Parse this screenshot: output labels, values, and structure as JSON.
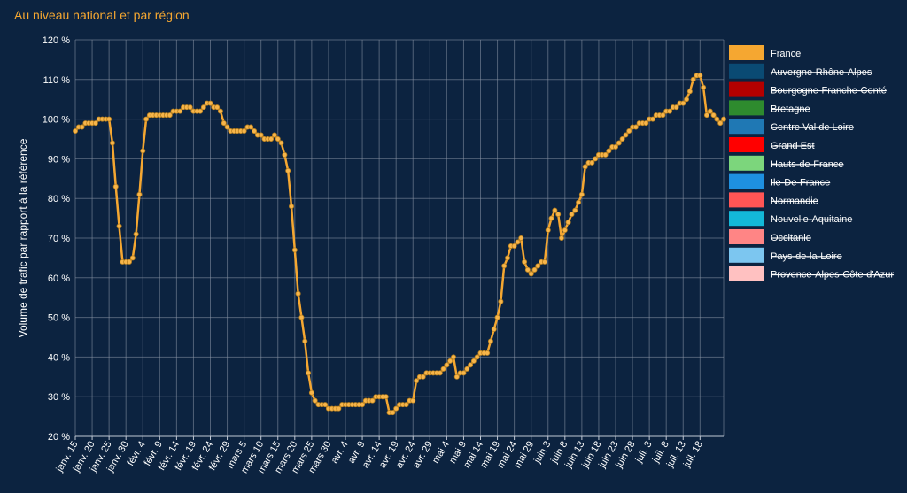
{
  "page_title": "Au niveau national et par région",
  "chart_data": {
    "type": "line",
    "ylabel": "Volume de trafic par rapport à la référence",
    "ylim": [
      20,
      120
    ],
    "y_ticks": [
      20,
      30,
      40,
      50,
      60,
      70,
      80,
      90,
      100,
      110,
      120
    ],
    "y_tick_suffix": " %",
    "grid": true,
    "legend_position": "right",
    "x_start": "2020-01-15",
    "x_end": "2020-07-19",
    "x_ticks": [
      "janv. 15",
      "janv. 20",
      "janv. 25",
      "janv. 30",
      "févr. 4",
      "févr. 9",
      "févr. 14",
      "févr. 19",
      "févr. 24",
      "févr. 29",
      "mars 5",
      "mars 10",
      "mars 15",
      "mars 20",
      "mars 25",
      "mars 30",
      "avr. 4",
      "avr. 9",
      "avr. 14",
      "avr. 19",
      "avr. 24",
      "avr. 29",
      "mai 4",
      "mai 9",
      "mai 14",
      "mai 19",
      "mai 24",
      "mai 29",
      "juin 3",
      "juin 8",
      "juin 13",
      "juin 18",
      "juin 23",
      "juin 28",
      "juil. 3",
      "juil. 8",
      "juil. 13",
      "juil. 18"
    ],
    "series": [
      {
        "name": "France",
        "color": "#f5a731",
        "visible": true,
        "values": [
          97,
          98,
          98,
          99,
          99,
          99,
          99,
          100,
          100,
          100,
          100,
          94,
          83,
          73,
          64,
          64,
          64,
          65,
          71,
          81,
          92,
          100,
          101,
          101,
          101,
          101,
          101,
          101,
          101,
          102,
          102,
          102,
          103,
          103,
          103,
          102,
          102,
          102,
          103,
          104,
          104,
          103,
          103,
          102,
          99,
          98,
          97,
          97,
          97,
          97,
          97,
          98,
          98,
          97,
          96,
          96,
          95,
          95,
          95,
          96,
          95,
          94,
          91,
          87,
          78,
          67,
          56,
          50,
          44,
          36,
          31,
          29,
          28,
          28,
          28,
          27,
          27,
          27,
          27,
          28,
          28,
          28,
          28,
          28,
          28,
          28,
          29,
          29,
          29,
          30,
          30,
          30,
          30,
          26,
          26,
          27,
          28,
          28,
          28,
          29,
          29,
          34,
          35,
          35,
          36,
          36,
          36,
          36,
          36,
          37,
          38,
          39,
          40,
          35,
          36,
          36,
          37,
          38,
          39,
          40,
          41,
          41,
          41,
          44,
          47,
          50,
          54,
          63,
          65,
          68,
          68,
          69,
          70,
          64,
          62,
          61,
          62,
          63,
          64,
          64,
          72,
          75,
          77,
          76,
          70,
          72,
          74,
          76,
          77,
          79,
          81,
          88,
          89,
          89,
          90,
          91,
          91,
          91,
          92,
          93,
          93,
          94,
          95,
          96,
          97,
          98,
          98,
          99,
          99,
          99,
          100,
          100,
          101,
          101,
          101,
          102,
          102,
          103,
          103,
          104,
          104,
          105,
          107,
          110,
          111,
          111,
          108,
          101,
          102,
          101,
          100,
          99,
          100
        ]
      },
      {
        "name": "Auvergne-Rhône-Alpes",
        "color": "#0a4a73",
        "visible": false
      },
      {
        "name": "Bourgogne-Franche-Conté",
        "color": "#b30000",
        "visible": false
      },
      {
        "name": "Bretagne",
        "color": "#2e8b2e",
        "visible": false
      },
      {
        "name": "Centre Val de Loire",
        "color": "#1f78b4",
        "visible": false
      },
      {
        "name": "Grand Est",
        "color": "#ff0000",
        "visible": false
      },
      {
        "name": "Hauts-de-France",
        "color": "#7cd67c",
        "visible": false
      },
      {
        "name": "Ile-De-France",
        "color": "#1e90e0",
        "visible": false
      },
      {
        "name": "Normandie",
        "color": "#ff5555",
        "visible": false
      },
      {
        "name": "Nouvelle-Aquitaine",
        "color": "#13b8d8",
        "visible": false
      },
      {
        "name": "Occitanie",
        "color": "#ff8585",
        "visible": false
      },
      {
        "name": "Pays-de-la-Loire",
        "color": "#7cc6f0",
        "visible": false
      },
      {
        "name": "Provence-Alpes-Côte-d'Azur",
        "color": "#ffc1c1",
        "visible": false
      }
    ]
  }
}
